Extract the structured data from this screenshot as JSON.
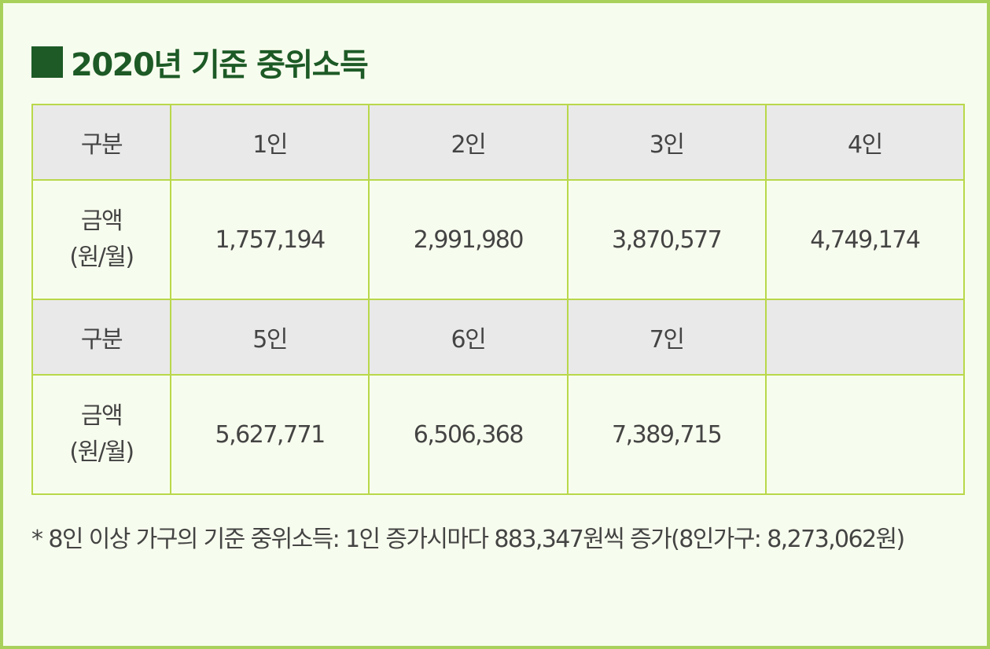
{
  "title": "2020년 기준 중위소득",
  "table": {
    "header_rows": [
      {
        "label": "구분",
        "cells": [
          "1인",
          "2인",
          "3인",
          "4인"
        ]
      },
      {
        "label": "구분",
        "cells": [
          "5인",
          "6인",
          "7인",
          ""
        ]
      }
    ],
    "amount_rows": [
      {
        "label_line1": "금액",
        "label_line2": "(원/월)",
        "cells": [
          "1,757,194",
          "2,991,980",
          "3,870,577",
          "4,749,174"
        ]
      },
      {
        "label_line1": "금액",
        "label_line2": "(원/월)",
        "cells": [
          "5,627,771",
          "6,506,368",
          "7,389,715",
          ""
        ]
      }
    ]
  },
  "footnote": "* 8인 이상 가구의 기준 중위소득: 1인 증가시마다 883,347원씩 증가(8인가구: 8,273,062원)",
  "colors": {
    "title": "#1d5a26",
    "border": "#b9d84a",
    "frame": "#a8d15c",
    "header_bg": "#e9e9e9",
    "body_bg": "#f7fdee"
  }
}
